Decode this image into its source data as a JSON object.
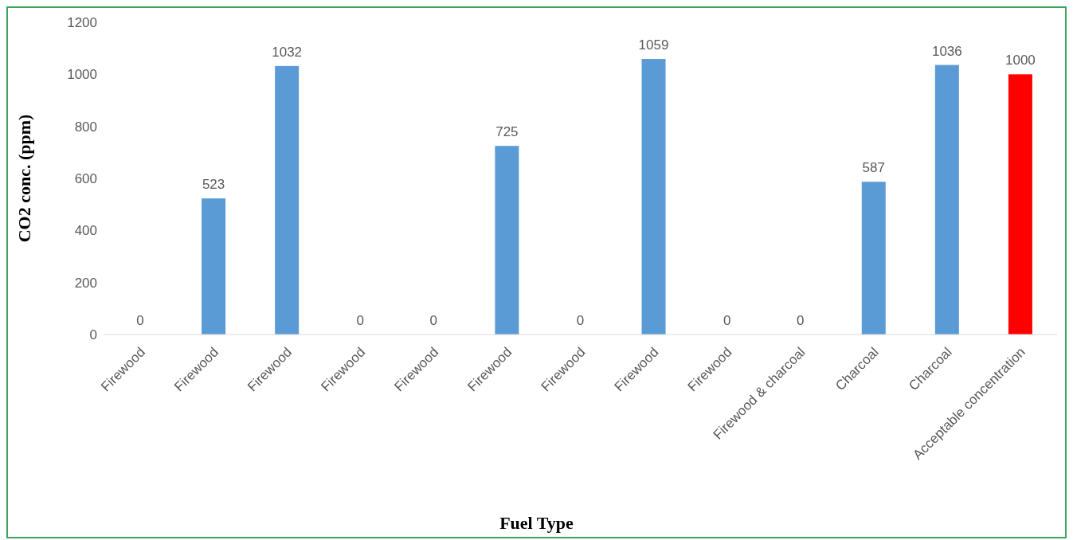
{
  "chart_data": {
    "type": "bar",
    "xlabel": "Fuel Type",
    "ylabel": "CO2 conc. (ppm)",
    "categories": [
      "Firewood",
      "Firewood",
      "Firewood",
      "Firewood",
      "Firewood",
      "Firewood",
      "Firewood",
      "Firewood",
      "Firewood",
      "Firewood & charcoal",
      "Charcoal",
      "Charcoal",
      "Acceptable concentration"
    ],
    "values": [
      0,
      523,
      1032,
      0,
      0,
      725,
      0,
      1059,
      0,
      0,
      587,
      1036,
      1000
    ],
    "colors": [
      "#5b9bd5",
      "#5b9bd5",
      "#5b9bd5",
      "#5b9bd5",
      "#5b9bd5",
      "#5b9bd5",
      "#5b9bd5",
      "#5b9bd5",
      "#5b9bd5",
      "#5b9bd5",
      "#5b9bd5",
      "#5b9bd5",
      "#ff0000"
    ],
    "ylim": [
      0,
      1200
    ],
    "yticks": [
      0,
      200,
      400,
      600,
      800,
      1000,
      1200
    ],
    "grid": false,
    "data_labels": true,
    "legend": false
  }
}
